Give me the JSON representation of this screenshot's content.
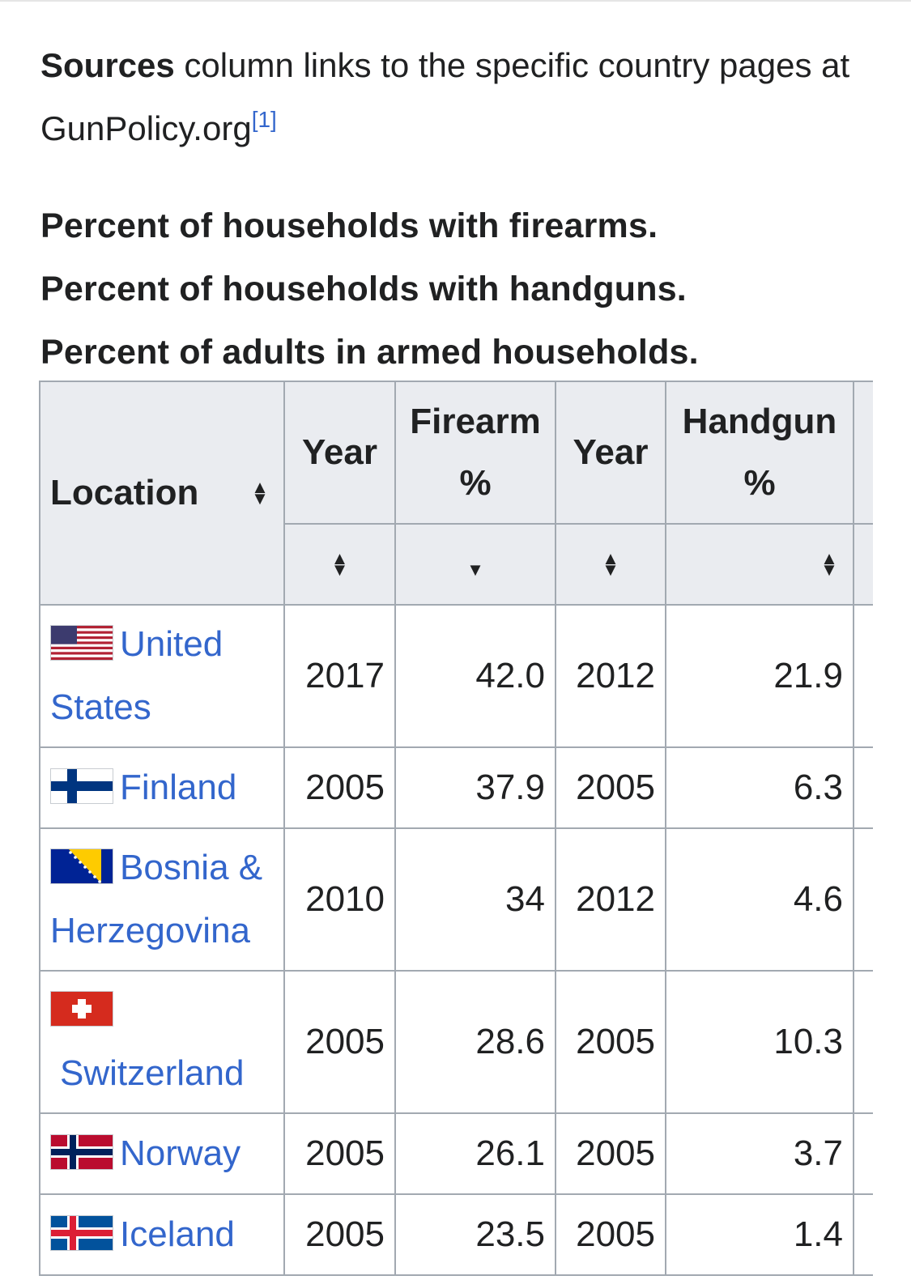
{
  "intro": {
    "bold": "Sources",
    "text": " column links to the specific country pages at GunPolicy.org",
    "ref": "[1]"
  },
  "headings": [
    "Percent of households with firearms.",
    "Percent of households with handguns.",
    "Percent of adults in armed households."
  ],
  "table": {
    "columns": {
      "location": "Location",
      "year1": "Year",
      "firearm_line1": "Firearm",
      "firearm_line2": "%",
      "year2": "Year",
      "handgun_line1": "Handgun",
      "handgun_line2": "%"
    },
    "sort_icons": {
      "location": "sort-both-icon",
      "year1": "sort-both-icon",
      "firearm": "sort-descending-icon",
      "year2": "sort-both-icon",
      "handgun": "sort-both-icon"
    },
    "rows": [
      {
        "location": "United States",
        "flag": "us-flag-icon",
        "year1": "2017",
        "firearm": "42.0",
        "year2": "2012",
        "handgun": "21.9"
      },
      {
        "location": "Finland",
        "flag": "finland-flag-icon",
        "year1": "2005",
        "firearm": "37.9",
        "year2": "2005",
        "handgun": "6.3"
      },
      {
        "location": "Bosnia & Herzegovina",
        "flag": "bosnia-flag-icon",
        "year1": "2010",
        "firearm": "34",
        "year2": "2012",
        "handgun": "4.6"
      },
      {
        "location": "Switzerland",
        "flag": "switzerland-flag-icon",
        "year1": "2005",
        "firearm": "28.6",
        "year2": "2005",
        "handgun": "10.3"
      },
      {
        "location": "Norway",
        "flag": "norway-flag-icon",
        "year1": "2005",
        "firearm": "26.1",
        "year2": "2005",
        "handgun": "3.7"
      },
      {
        "location": "Iceland",
        "flag": "iceland-flag-icon",
        "year1": "2005",
        "firearm": "23.5",
        "year2": "2005",
        "handgun": "1.4"
      }
    ]
  },
  "colors": {
    "link": "#3366cc",
    "header_bg": "#eaecf0",
    "border": "#a2a9b1"
  }
}
